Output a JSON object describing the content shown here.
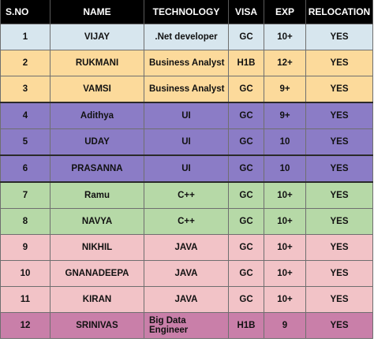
{
  "headers": {
    "sno": "S.NO",
    "name": "NAME",
    "technology": "TECHNOLOGY",
    "visa": "VISA",
    "exp": "EXP",
    "relocation": "RELOCATION"
  },
  "rows": [
    {
      "sno": "1",
      "name": "VIJAY",
      "technology": ".Net developer",
      "visa": "GC",
      "exp": "10+",
      "relocation": "YES",
      "group": "blue"
    },
    {
      "sno": "2",
      "name": "RUKMANI",
      "technology": "Business Analyst",
      "visa": "H1B",
      "exp": "12+",
      "relocation": "YES",
      "group": "yellow"
    },
    {
      "sno": "3",
      "name": "VAMSI",
      "technology": "Business Analyst",
      "visa": "GC",
      "exp": "9+",
      "relocation": "YES",
      "group": "yellow"
    },
    {
      "sno": "4",
      "name": "Adithya",
      "technology": "UI",
      "visa": "GC",
      "exp": "9+",
      "relocation": "YES",
      "group": "purple"
    },
    {
      "sno": "5",
      "name": "UDAY",
      "technology": "UI",
      "visa": "GC",
      "exp": "10",
      "relocation": "YES",
      "group": "purple"
    },
    {
      "sno": "6",
      "name": "PRASANNA",
      "technology": "UI",
      "visa": "GC",
      "exp": "10",
      "relocation": "YES",
      "group": "purple"
    },
    {
      "sno": "7",
      "name": "Ramu",
      "technology": "C++",
      "visa": "GC",
      "exp": "10+",
      "relocation": "YES",
      "group": "green"
    },
    {
      "sno": "8",
      "name": "NAVYA",
      "technology": "C++",
      "visa": "GC",
      "exp": "10+",
      "relocation": "YES",
      "group": "green"
    },
    {
      "sno": "9",
      "name": "NIKHIL",
      "technology": "JAVA",
      "visa": "GC",
      "exp": "10+",
      "relocation": "YES",
      "group": "pink"
    },
    {
      "sno": "10",
      "name": "GNANADEEPA",
      "technology": "JAVA",
      "visa": "GC",
      "exp": "10+",
      "relocation": "YES",
      "group": "pink"
    },
    {
      "sno": "11",
      "name": "KIRAN",
      "technology": "JAVA",
      "visa": "GC",
      "exp": "10+",
      "relocation": "YES",
      "group": "pink"
    },
    {
      "sno": "12",
      "name": "SRINIVAS",
      "technology": "Big Data Engineer",
      "visa": "H1B",
      "exp": "9",
      "relocation": "YES",
      "group": "mauve"
    }
  ],
  "colors": {
    "header_bg": "#000000",
    "header_text": "#ffffff",
    "blue": "#d7e6ee",
    "yellow": "#fcda9b",
    "purple": "#8b7cc6",
    "green": "#b6d9a7",
    "pink": "#f2c3c7",
    "mauve": "#c97fa9"
  }
}
